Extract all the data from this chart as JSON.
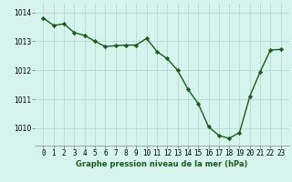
{
  "hours": [
    0,
    1,
    2,
    3,
    4,
    5,
    6,
    7,
    8,
    9,
    10,
    11,
    12,
    13,
    14,
    15,
    16,
    17,
    18,
    19,
    20,
    21,
    22,
    23
  ],
  "pressure": [
    1013.8,
    1013.55,
    1013.6,
    1013.3,
    1013.2,
    1013.0,
    1012.82,
    1012.85,
    1012.87,
    1012.87,
    1013.1,
    1012.65,
    1012.4,
    1012.0,
    1011.35,
    1010.85,
    1010.05,
    1009.75,
    1009.65,
    1009.85,
    1011.1,
    1011.95,
    1012.7,
    1012.72
  ],
  "line_color": "#1a5c1a",
  "marker": "D",
  "marker_size": 2.2,
  "bg_color": "#d6f3ee",
  "grid_color": "#aed4cc",
  "ylim": [
    1009.4,
    1014.3
  ],
  "yticks": [
    1010,
    1011,
    1012,
    1013,
    1014
  ],
  "xlabel": "Graphe pression niveau de la mer (hPa)",
  "linewidth": 1.0,
  "tick_fontsize": 5.5,
  "xlabel_fontsize": 6.0
}
